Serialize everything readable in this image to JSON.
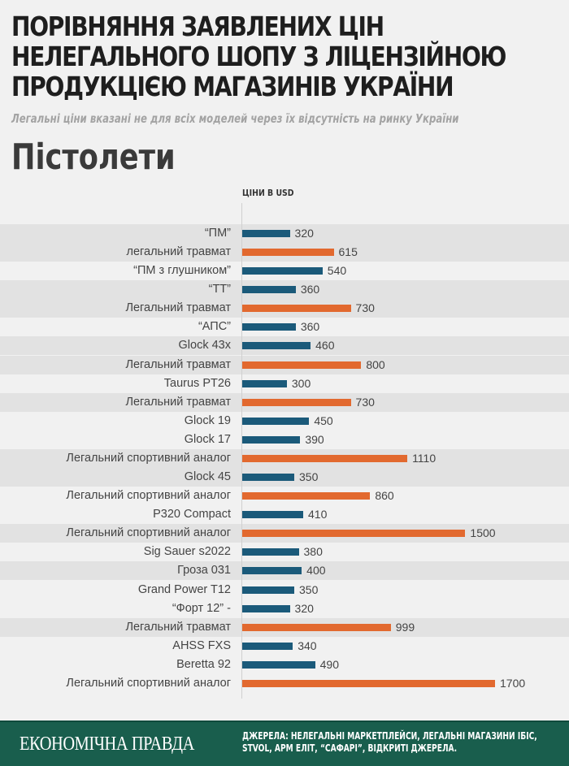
{
  "title": "Порівняння заявлених цін нелегального шопу з ліцензійною продукцією магазинів України",
  "subtitle": "Легальні ціни вказані не для всіх моделей через їх відсутність на ринку України",
  "section": "Пістолети",
  "footer": {
    "logo": "ЕКОНОМІЧНА ПРАВДА",
    "sources": "ДЖЕРЕЛА: НЕЛЕГАЛЬНІ МАРКЕТПЛЕЙСИ, ЛЕГАЛЬНІ МАГАЗИНИ ІБІС, STVOL, АРМ ЕЛІТ, “САФАРІ”, ВІДКРИТІ ДЖЕРЕЛА."
  },
  "chart_data": {
    "type": "bar",
    "orientation": "horizontal",
    "unit_label": "ЦІНИ В USD",
    "colors": {
      "illegal": "#1b5a7a",
      "legal": "#e2692f"
    },
    "xlim": [
      0,
      1700
    ],
    "grid": false,
    "categories": [
      "“ПМ”",
      "легальний травмат",
      "“ПМ з глушником”",
      "“ТТ”",
      "Легальний травмат",
      "“АПС”",
      "Glock 43x",
      "Легальний травмат",
      "Taurus PT26",
      "Легальний травмат",
      "Glock 19",
      "Glock 17",
      "Легальний спортивний аналог",
      "Glock 45",
      "Легальний спортивний аналог",
      "P320 Compact",
      "Легальний спортивний аналог",
      "Sig Sauer s2022",
      "Гроза 031",
      "Grand Power T12",
      "“Форт 12” -",
      "Легальний травмат",
      "AHSS FXS",
      "Beretta 92",
      "Легальний спортивний аналог"
    ],
    "values": [
      320,
      615,
      540,
      360,
      730,
      360,
      460,
      800,
      300,
      730,
      450,
      390,
      1110,
      350,
      860,
      410,
      1500,
      380,
      400,
      350,
      320,
      999,
      340,
      490,
      1700
    ],
    "kinds": [
      "illegal",
      "legal",
      "illegal",
      "illegal",
      "legal",
      "illegal",
      "illegal",
      "legal",
      "illegal",
      "legal",
      "illegal",
      "illegal",
      "legal",
      "illegal",
      "legal",
      "illegal",
      "legal",
      "illegal",
      "illegal",
      "illegal",
      "illegal",
      "legal",
      "illegal",
      "illegal",
      "legal"
    ],
    "shaded_rows": [
      0,
      1,
      3,
      4,
      6,
      7,
      9,
      12,
      13,
      16,
      18,
      21
    ]
  }
}
